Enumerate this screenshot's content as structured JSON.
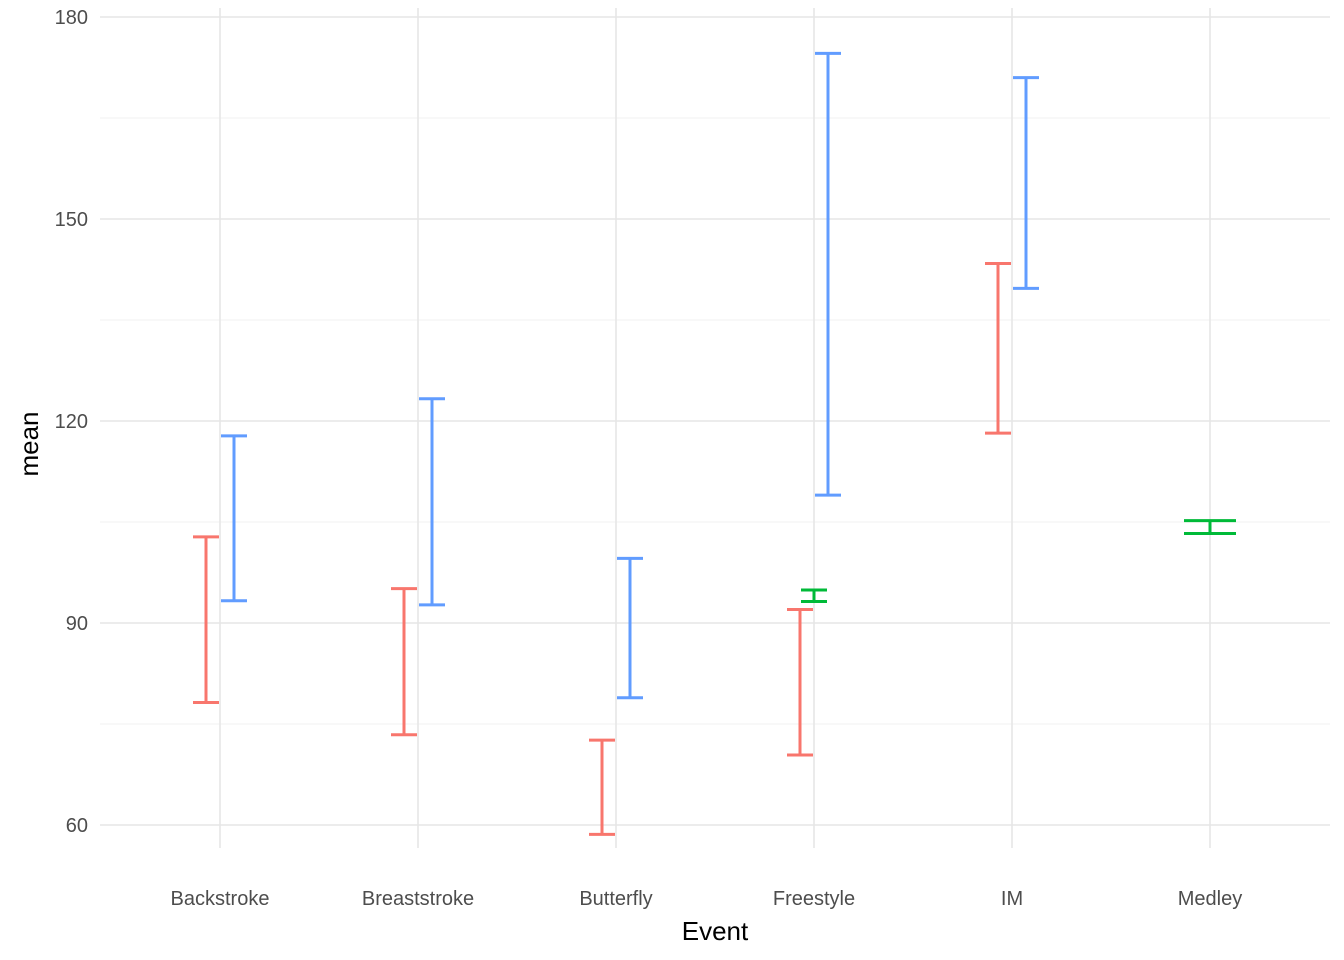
{
  "chart_data": {
    "type": "errorbar",
    "xlabel": "Event",
    "ylabel": "mean",
    "categories": [
      "Backstroke",
      "Breaststroke",
      "Butterfly",
      "Freestyle",
      "IM",
      "Medley"
    ],
    "ylim": [
      53,
      180
    ],
    "yticks": [
      60,
      90,
      120,
      150,
      180
    ],
    "grid": true,
    "legend": "none",
    "groups": [
      {
        "color": "#F8766D",
        "offset": -1,
        "bars": [
          {
            "category": "Backstroke",
            "low": 78.2,
            "high": 102.8
          },
          {
            "category": "Breaststroke",
            "low": 73.4,
            "high": 95.1
          },
          {
            "category": "Butterfly",
            "low": 58.6,
            "high": 72.6
          },
          {
            "category": "Freestyle",
            "low": 70.4,
            "high": 92.0
          },
          {
            "category": "IM",
            "low": 118.2,
            "high": 143.4
          }
        ]
      },
      {
        "color": "#00BA38",
        "offset": 0,
        "bars": [
          {
            "category": "Freestyle",
            "low": 93.2,
            "high": 94.9
          },
          {
            "category": "Medley",
            "low": 103.3,
            "high": 105.2
          }
        ]
      },
      {
        "color": "#619CFF",
        "offset": 1,
        "bars": [
          {
            "category": "Backstroke",
            "low": 93.3,
            "high": 117.8
          },
          {
            "category": "Breaststroke",
            "low": 92.7,
            "high": 123.3
          },
          {
            "category": "Butterfly",
            "low": 78.9,
            "high": 99.6
          },
          {
            "category": "Freestyle",
            "low": 109.0,
            "high": 174.6
          },
          {
            "category": "IM",
            "low": 139.7,
            "high": 171.0
          }
        ]
      }
    ]
  }
}
